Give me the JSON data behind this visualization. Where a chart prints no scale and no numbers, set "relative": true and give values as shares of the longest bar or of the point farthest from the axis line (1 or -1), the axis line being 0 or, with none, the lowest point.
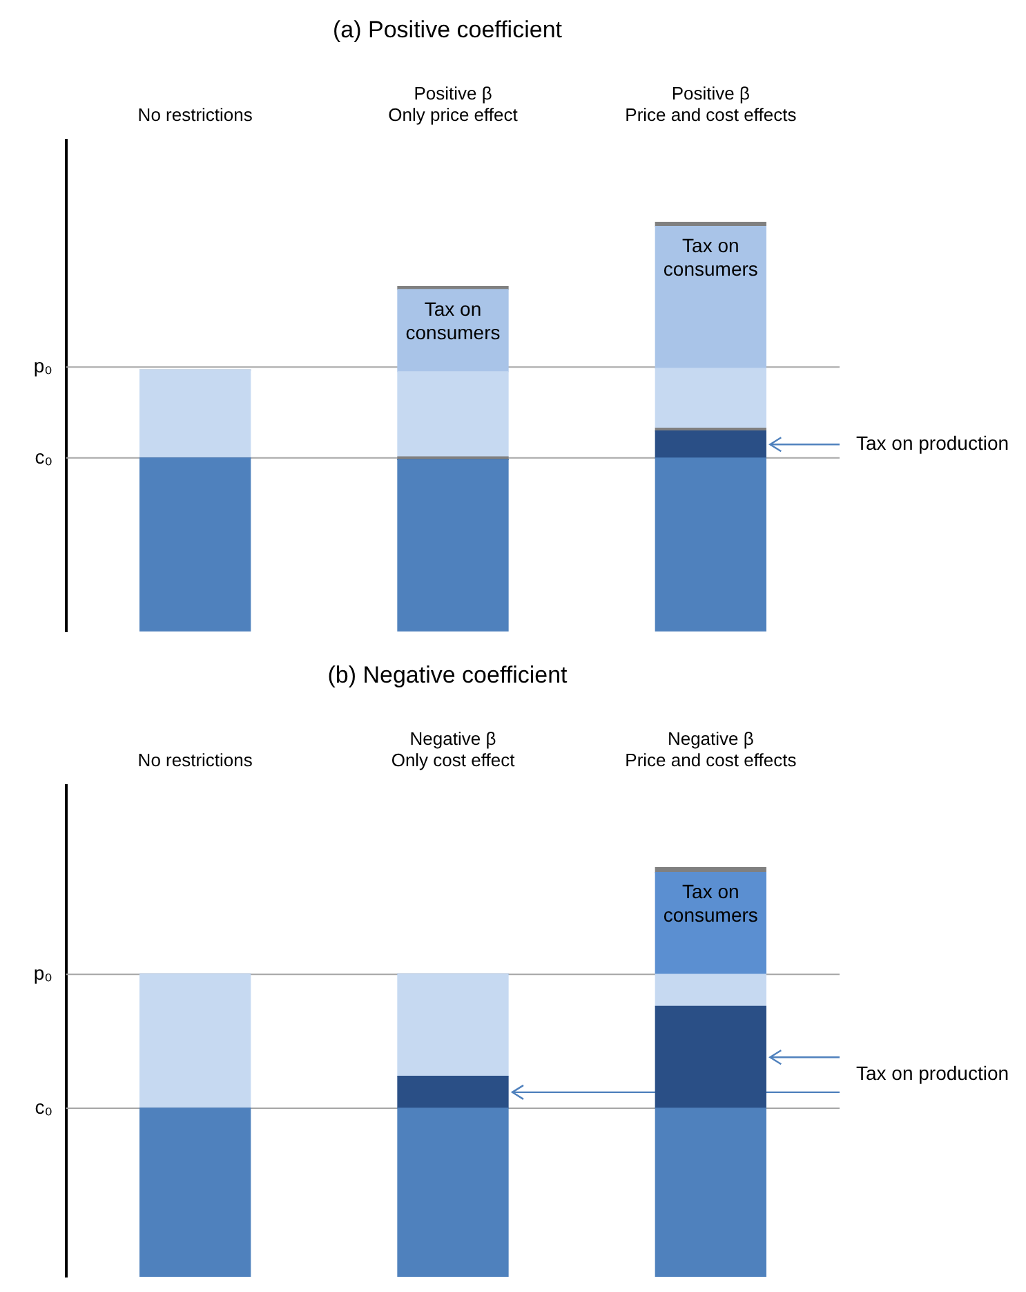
{
  "chart_data": [
    {
      "type": "bar",
      "title": "(a) Positive coefficient",
      "relative": true,
      "stacked": true,
      "categories": [
        "No restrictions",
        "Positive β\nOnly price effect",
        "Positive β\nPrice and cost effects"
      ],
      "series": [
        {
          "color": "#4f81bd",
          "values": [
            0.424,
            0.42,
            0.424
          ]
        },
        {
          "name": "Tax on production",
          "color": "#2a4f86",
          "values": [
            0,
            0,
            0.066
          ]
        },
        {
          "color": "#808080",
          "values": [
            0,
            0.007,
            0.007
          ]
        },
        {
          "color": "#c6d9f1",
          "values": [
            0.215,
            0.208,
            0.146
          ]
        },
        {
          "name": "Tax on consumers",
          "color": "#a9c4e8",
          "values": [
            0,
            0.201,
            0.347
          ]
        },
        {
          "color": "#808080",
          "values": [
            0,
            0.007,
            0.01
          ]
        }
      ],
      "ref_lines": [
        {
          "axis": "y",
          "value": 0.646,
          "label": "p₀",
          "color": "#a6a6a6"
        },
        {
          "axis": "y",
          "value": 0.424,
          "label": "c₀",
          "color": "#a6a6a6"
        }
      ],
      "legend": false
    },
    {
      "type": "bar",
      "title": "(b) Negative coefficient",
      "relative": true,
      "stacked": true,
      "categories": [
        "No restrictions",
        "Negative β\nOnly cost effect",
        "Negative β\nPrice and cost effects"
      ],
      "series": [
        {
          "color": "#4f81bd",
          "values": [
            0.412,
            0.412,
            0.412
          ]
        },
        {
          "name": "Tax on production",
          "color": "#2a4f86",
          "values": [
            0,
            0.078,
            0.249
          ]
        },
        {
          "color": "#c6d9f1",
          "values": [
            0.327,
            0.249,
            0.078
          ]
        },
        {
          "name": "Tax on consumers",
          "color": "#5b8fd1",
          "values": [
            0,
            0,
            0.249
          ]
        },
        {
          "color": "#808080",
          "values": [
            0,
            0,
            0.012
          ]
        }
      ],
      "ref_lines": [
        {
          "axis": "y",
          "value": 0.739,
          "label": "p₀",
          "color": "#a6a6a6"
        },
        {
          "axis": "y",
          "value": 0.412,
          "label": "c₀",
          "color": "#a6a6a6"
        }
      ],
      "legend": false
    }
  ]
}
